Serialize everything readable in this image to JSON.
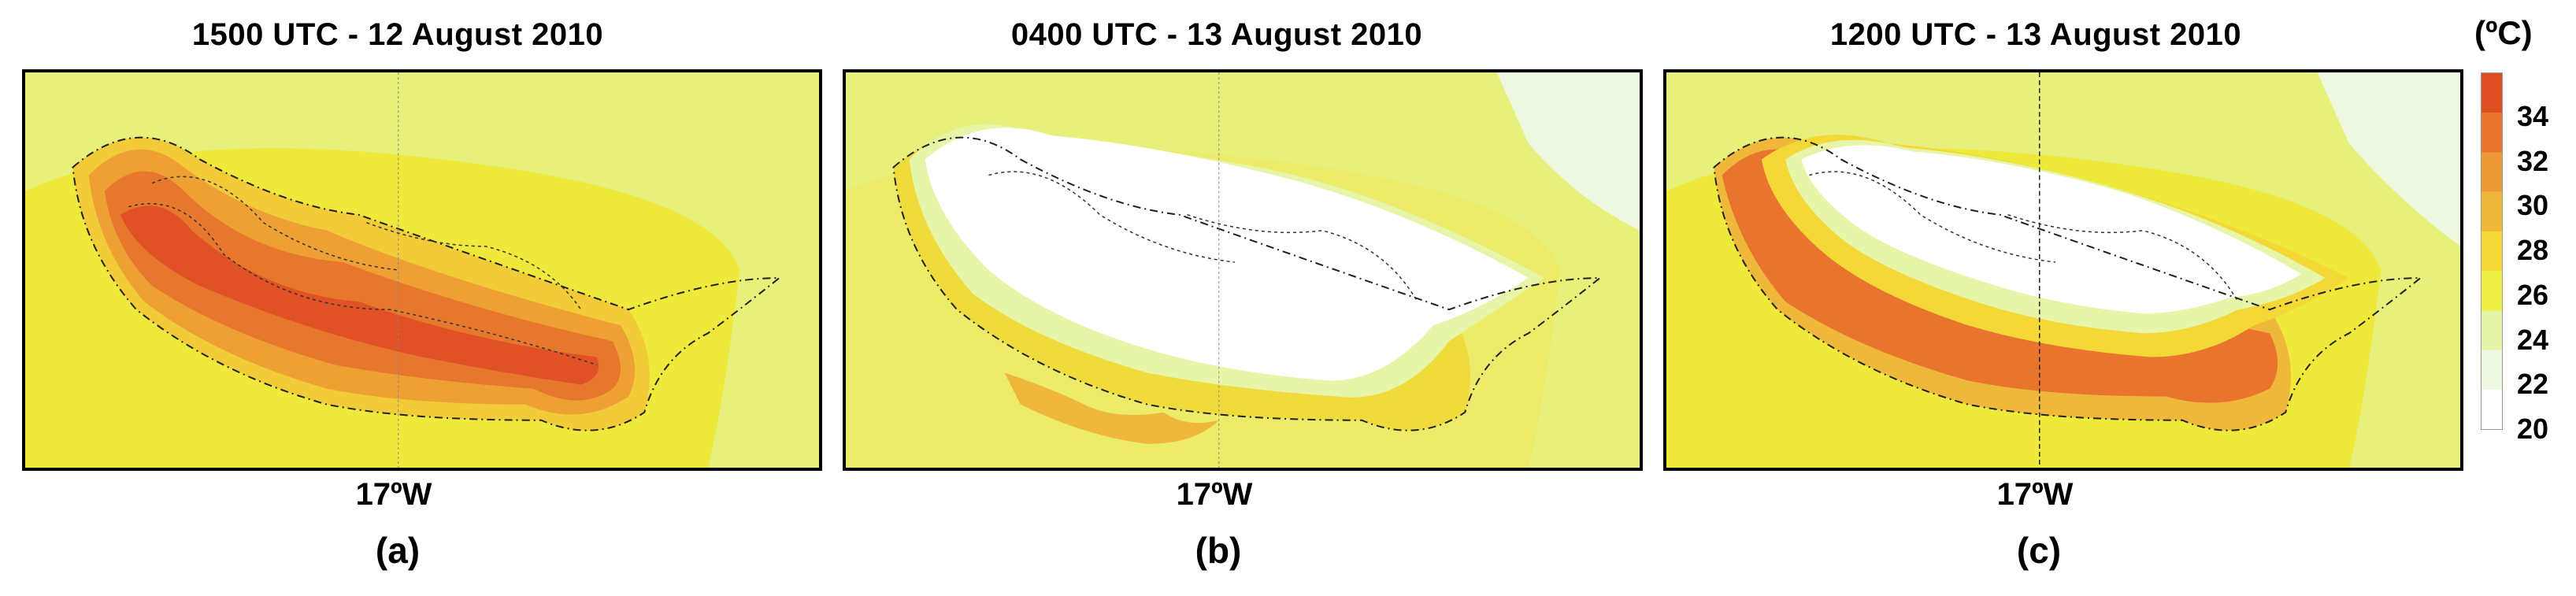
{
  "panels": [
    {
      "title": "1500 UTC - 12 August 2010",
      "lon_label": "17ºW",
      "letter": "(a)",
      "variant": "day"
    },
    {
      "title": "0400 UTC - 13 August 2010",
      "lon_label": "17ºW",
      "letter": "(b)",
      "variant": "night"
    },
    {
      "title": "1200 UTC - 13 August 2010",
      "lon_label": "17ºW",
      "letter": "(c)",
      "variant": "midday"
    }
  ],
  "colorbar": {
    "unit": "(ºC)",
    "ticks": [
      "34",
      "32",
      "30",
      "28",
      "26",
      "24",
      "22",
      "20"
    ],
    "min": 20,
    "max": 36,
    "colors": [
      "#ffffff",
      "#eef8e0",
      "#e7f5a8",
      "#f0ef44",
      "#f3d838",
      "#f0b83a",
      "#ec9836",
      "#e8742e",
      "#e04f24"
    ]
  }
}
